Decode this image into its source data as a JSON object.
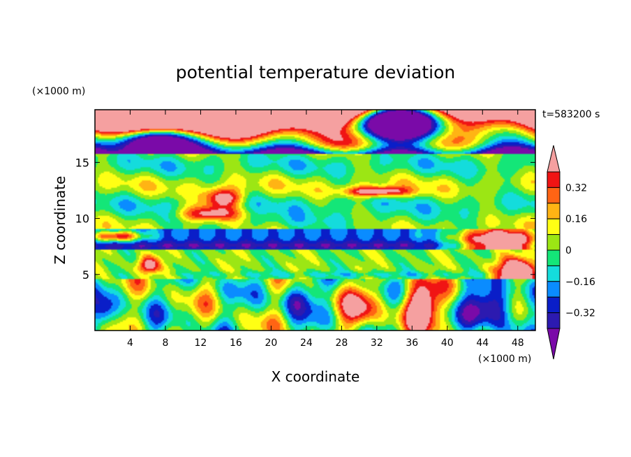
{
  "chart_data": {
    "type": "heatmap",
    "title": "potential temperature deviation",
    "xlabel": "X coordinate",
    "ylabel": "Z coordinate",
    "x_unit_label": "(×1000 m)",
    "y_unit_label": "(×1000 m)",
    "time_label": "t=583200 s",
    "xlim": [
      0,
      50
    ],
    "ylim": [
      0,
      19.7
    ],
    "x_ticks": [
      4,
      8,
      12,
      16,
      20,
      24,
      28,
      32,
      36,
      40,
      44,
      48
    ],
    "y_ticks": [
      5,
      10,
      15
    ],
    "colorbar": {
      "levels": [
        -0.4,
        -0.32,
        -0.24,
        -0.16,
        -0.08,
        0,
        0.08,
        0.16,
        0.24,
        0.32,
        0.4
      ],
      "labels": [
        -0.32,
        -0.16,
        0,
        0.16,
        0.32
      ],
      "colors": [
        "#7a0aa8",
        "#2c1ab0",
        "#0a1ec8",
        "#0a8cff",
        "#14dcdc",
        "#14e678",
        "#9ce614",
        "#ffff14",
        "#ffb414",
        "#ff6414",
        "#f01414",
        "#f5a0a0"
      ],
      "under_color": "#7a0aa8",
      "over_color": "#f5a0a0"
    }
  }
}
